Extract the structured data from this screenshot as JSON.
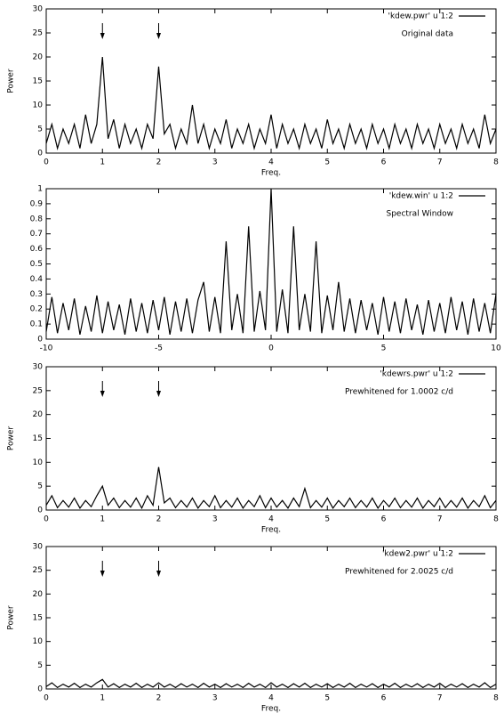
{
  "chart_data": [
    {
      "type": "line",
      "xlabel": "Freq.",
      "ylabel": "Power",
      "annotation": "Original data",
      "arrows": [
        1,
        2
      ],
      "xlim": [
        0,
        8
      ],
      "xticks": [
        0,
        1,
        2,
        3,
        4,
        5,
        6,
        7,
        8
      ],
      "ylim": [
        0,
        30
      ],
      "yticks": [
        0,
        5,
        10,
        15,
        20,
        25,
        30
      ],
      "x": [
        0,
        0.1,
        0.2,
        0.3,
        0.4,
        0.5,
        0.6,
        0.7,
        0.8,
        0.9,
        1,
        1.1,
        1.2,
        1.3,
        1.4,
        1.5,
        1.6,
        1.7,
        1.8,
        1.9,
        2,
        2.1,
        2.2,
        2.3,
        2.4,
        2.5,
        2.6,
        2.7,
        2.8,
        2.9,
        3,
        3.1,
        3.2,
        3.3,
        3.4,
        3.5,
        3.6,
        3.7,
        3.8,
        3.9,
        4,
        4.1,
        4.2,
        4.3,
        4.4,
        4.5,
        4.6,
        4.7,
        4.8,
        4.9,
        5,
        5.1,
        5.2,
        5.3,
        5.4,
        5.5,
        5.6,
        5.7,
        5.8,
        5.9,
        6,
        6.1,
        6.2,
        6.3,
        6.4,
        6.5,
        6.6,
        6.7,
        6.8,
        6.9,
        7,
        7.1,
        7.2,
        7.3,
        7.4,
        7.5,
        7.6,
        7.7,
        7.8,
        7.9,
        8
      ],
      "series": [
        {
          "name": "'kdew.pwr' u 1:2",
          "color": "#000000",
          "values": [
            2,
            6,
            1,
            5,
            2,
            6,
            1,
            8,
            2,
            6,
            20,
            3,
            7,
            1,
            6,
            2,
            5,
            1,
            6,
            3,
            18,
            4,
            6,
            1,
            5,
            2,
            10,
            2,
            6,
            1,
            5,
            2,
            7,
            1,
            5,
            2,
            6,
            1,
            5,
            2,
            8,
            1,
            6,
            2,
            5,
            1,
            6,
            2,
            5,
            1,
            7,
            2,
            5,
            1,
            6,
            2,
            5,
            1,
            6,
            2,
            5,
            1,
            6,
            2,
            5,
            1,
            6,
            2,
            5,
            1,
            6,
            2,
            5,
            1,
            6,
            2,
            5,
            1,
            8,
            2,
            5
          ]
        }
      ]
    },
    {
      "type": "line",
      "annotation": "Spectral Window",
      "xlim": [
        -10,
        10
      ],
      "xticks": [
        -10,
        -5,
        0,
        5,
        10
      ],
      "ylim": [
        0,
        1
      ],
      "yticks": [
        0,
        0.1,
        0.2,
        0.3,
        0.4,
        0.5,
        0.6,
        0.7,
        0.8,
        0.9,
        1
      ],
      "x": [
        -10,
        -9.75,
        -9.5,
        -9.25,
        -9,
        -8.75,
        -8.5,
        -8.25,
        -8,
        -7.75,
        -7.5,
        -7.25,
        -7,
        -6.75,
        -6.5,
        -6.25,
        -6,
        -5.75,
        -5.5,
        -5.25,
        -5,
        -4.75,
        -4.5,
        -4.25,
        -4,
        -3.75,
        -3.5,
        -3.25,
        -3,
        -2.75,
        -2.5,
        -2.25,
        -2,
        -1.75,
        -1.5,
        -1.25,
        -1,
        -0.75,
        -0.5,
        -0.25,
        0,
        0.25,
        0.5,
        0.75,
        1,
        1.25,
        1.5,
        1.75,
        2,
        2.25,
        2.5,
        2.75,
        3,
        3.25,
        3.5,
        3.75,
        4,
        4.25,
        4.5,
        4.75,
        5,
        5.25,
        5.5,
        5.75,
        6,
        6.25,
        6.5,
        6.75,
        7,
        7.25,
        7.5,
        7.75,
        8,
        8.25,
        8.5,
        8.75,
        9,
        9.25,
        9.5,
        9.75,
        10
      ],
      "series": [
        {
          "name": "'kdew.win' u 1:2",
          "color": "#000000",
          "values": [
            0.05,
            0.28,
            0.04,
            0.24,
            0.06,
            0.27,
            0.03,
            0.22,
            0.05,
            0.29,
            0.04,
            0.25,
            0.06,
            0.23,
            0.03,
            0.27,
            0.05,
            0.24,
            0.04,
            0.26,
            0.06,
            0.28,
            0.03,
            0.25,
            0.05,
            0.27,
            0.04,
            0.26,
            0.38,
            0.05,
            0.28,
            0.04,
            0.65,
            0.06,
            0.3,
            0.04,
            0.75,
            0.05,
            0.32,
            0.06,
            1,
            0.05,
            0.33,
            0.04,
            0.75,
            0.06,
            0.3,
            0.05,
            0.65,
            0.04,
            0.29,
            0.06,
            0.38,
            0.05,
            0.27,
            0.04,
            0.26,
            0.06,
            0.24,
            0.03,
            0.28,
            0.05,
            0.25,
            0.04,
            0.27,
            0.06,
            0.23,
            0.03,
            0.26,
            0.05,
            0.24,
            0.04,
            0.28,
            0.06,
            0.25,
            0.03,
            0.27,
            0.05,
            0.24,
            0.04,
            0.3
          ]
        }
      ]
    },
    {
      "type": "line",
      "xlabel": "Freq.",
      "ylabel": "Power",
      "annotation": "Prewhitened for 1.0002 c/d",
      "arrows": [
        1,
        2
      ],
      "xlim": [
        0,
        8
      ],
      "xticks": [
        0,
        1,
        2,
        3,
        4,
        5,
        6,
        7,
        8
      ],
      "ylim": [
        0,
        30
      ],
      "yticks": [
        0,
        5,
        10,
        15,
        20,
        25,
        30
      ],
      "x": [
        0,
        0.1,
        0.2,
        0.3,
        0.4,
        0.5,
        0.6,
        0.7,
        0.8,
        0.9,
        1,
        1.1,
        1.2,
        1.3,
        1.4,
        1.5,
        1.6,
        1.7,
        1.8,
        1.9,
        2,
        2.1,
        2.2,
        2.3,
        2.4,
        2.5,
        2.6,
        2.7,
        2.8,
        2.9,
        3,
        3.1,
        3.2,
        3.3,
        3.4,
        3.5,
        3.6,
        3.7,
        3.8,
        3.9,
        4,
        4.1,
        4.2,
        4.3,
        4.4,
        4.5,
        4.6,
        4.7,
        4.8,
        4.9,
        5,
        5.1,
        5.2,
        5.3,
        5.4,
        5.5,
        5.6,
        5.7,
        5.8,
        5.9,
        6,
        6.1,
        6.2,
        6.3,
        6.4,
        6.5,
        6.6,
        6.7,
        6.8,
        6.9,
        7,
        7.1,
        7.2,
        7.3,
        7.4,
        7.5,
        7.6,
        7.7,
        7.8,
        7.9,
        8
      ],
      "series": [
        {
          "name": "'kdewrs.pwr' u 1:2",
          "color": "#000000",
          "values": [
            1,
            3,
            0.5,
            2,
            0.6,
            2.5,
            0.4,
            2,
            0.7,
            3,
            5,
            1,
            2.5,
            0.5,
            2,
            0.6,
            2.5,
            0.4,
            3,
            1,
            9,
            1.5,
            2.5,
            0.5,
            2,
            0.6,
            2.5,
            0.4,
            2,
            0.7,
            3,
            0.5,
            2,
            0.6,
            2.5,
            0.4,
            2,
            0.7,
            3,
            0.5,
            2.5,
            0.6,
            2,
            0.4,
            2.5,
            0.7,
            4.5,
            0.5,
            2,
            0.6,
            2.5,
            0.4,
            2,
            0.7,
            2.5,
            0.5,
            2,
            0.6,
            2.5,
            0.4,
            2,
            0.7,
            2.5,
            0.5,
            2,
            0.6,
            2.5,
            0.4,
            2,
            0.7,
            2.5,
            0.5,
            2,
            0.6,
            2.5,
            0.4,
            2,
            0.7,
            3,
            0.5,
            2
          ]
        }
      ]
    },
    {
      "type": "line",
      "xlabel": "Freq.",
      "ylabel": "Power",
      "annotation": "Prewhitened for 2.0025 c/d",
      "arrows": [
        1,
        2
      ],
      "xlim": [
        0,
        8
      ],
      "xticks": [
        0,
        1,
        2,
        3,
        4,
        5,
        6,
        7,
        8
      ],
      "ylim": [
        0,
        30
      ],
      "yticks": [
        0,
        5,
        10,
        15,
        20,
        25,
        30
      ],
      "x": [
        0,
        0.1,
        0.2,
        0.3,
        0.4,
        0.5,
        0.6,
        0.7,
        0.8,
        0.9,
        1,
        1.1,
        1.2,
        1.3,
        1.4,
        1.5,
        1.6,
        1.7,
        1.8,
        1.9,
        2,
        2.1,
        2.2,
        2.3,
        2.4,
        2.5,
        2.6,
        2.7,
        2.8,
        2.9,
        3,
        3.1,
        3.2,
        3.3,
        3.4,
        3.5,
        3.6,
        3.7,
        3.8,
        3.9,
        4,
        4.1,
        4.2,
        4.3,
        4.4,
        4.5,
        4.6,
        4.7,
        4.8,
        4.9,
        5,
        5.1,
        5.2,
        5.3,
        5.4,
        5.5,
        5.6,
        5.7,
        5.8,
        5.9,
        6,
        6.1,
        6.2,
        6.3,
        6.4,
        6.5,
        6.6,
        6.7,
        6.8,
        6.9,
        7,
        7.1,
        7.2,
        7.3,
        7.4,
        7.5,
        7.6,
        7.7,
        7.8,
        7.9,
        8
      ],
      "series": [
        {
          "name": "'kdew2.pwr' u 1:2",
          "color": "#000000",
          "values": [
            0.5,
            1.3,
            0.3,
            1,
            0.4,
            1.2,
            0.3,
            1,
            0.4,
            1.3,
            2,
            0.4,
            1.1,
            0.3,
            1,
            0.4,
            1.2,
            0.3,
            1,
            0.4,
            1.3,
            0.4,
            1,
            0.3,
            1.1,
            0.4,
            1,
            0.3,
            1.2,
            0.4,
            1,
            0.3,
            1.1,
            0.4,
            1,
            0.3,
            1.2,
            0.4,
            1,
            0.3,
            1.3,
            0.4,
            1,
            0.3,
            1.1,
            0.4,
            1.2,
            0.3,
            1,
            0.4,
            1.1,
            0.3,
            1,
            0.4,
            1.2,
            0.3,
            1,
            0.4,
            1.1,
            0.3,
            1,
            0.4,
            1.2,
            0.3,
            1,
            0.4,
            1.1,
            0.3,
            1,
            0.4,
            1.2,
            0.3,
            1,
            0.4,
            1.1,
            0.3,
            1,
            0.4,
            1.3,
            0.3,
            1
          ]
        }
      ]
    }
  ]
}
